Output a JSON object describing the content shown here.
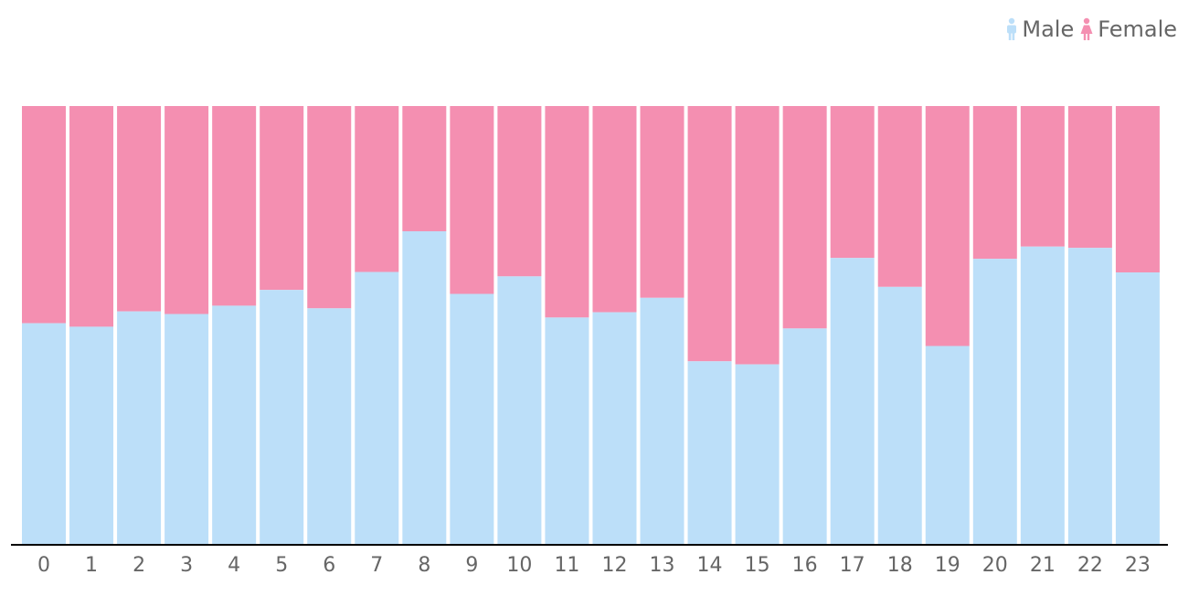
{
  "chart_data": {
    "type": "bar",
    "stacked": true,
    "normalized": true,
    "categories": [
      "0",
      "1",
      "2",
      "3",
      "4",
      "5",
      "6",
      "7",
      "8",
      "9",
      "10",
      "11",
      "12",
      "13",
      "14",
      "15",
      "16",
      "17",
      "18",
      "19",
      "20",
      "21",
      "22",
      "23"
    ],
    "series": [
      {
        "name": "Male",
        "color": "#bcdff9",
        "icon": "male-person-icon",
        "values": [
          0.504,
          0.496,
          0.531,
          0.525,
          0.544,
          0.58,
          0.538,
          0.621,
          0.714,
          0.571,
          0.611,
          0.517,
          0.529,
          0.562,
          0.417,
          0.41,
          0.492,
          0.653,
          0.587,
          0.452,
          0.651,
          0.679,
          0.676,
          0.62
        ]
      },
      {
        "name": "Female",
        "color": "#f48fb1",
        "icon": "female-person-icon",
        "values": [
          0.496,
          0.504,
          0.469,
          0.475,
          0.456,
          0.42,
          0.462,
          0.379,
          0.286,
          0.429,
          0.389,
          0.483,
          0.471,
          0.438,
          0.583,
          0.59,
          0.508,
          0.347,
          0.413,
          0.548,
          0.349,
          0.321,
          0.324,
          0.38
        ]
      }
    ],
    "ylim": [
      0,
      1
    ],
    "grid": false,
    "legend_position": "top-right",
    "axis_color": "#000000",
    "tick_color": "#666666"
  }
}
